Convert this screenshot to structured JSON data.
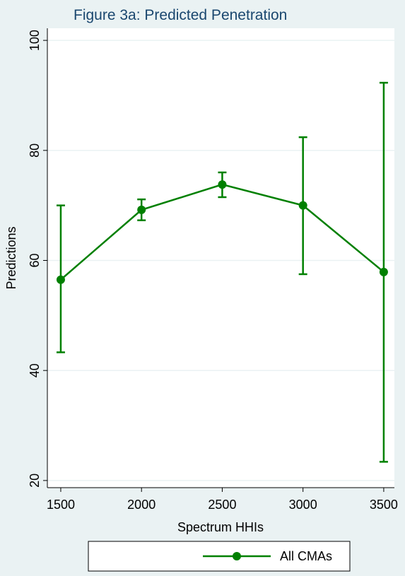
{
  "chart_data": {
    "type": "line-errorbar",
    "title": "Figure 3a: Predicted Penetration",
    "x_label": "Spectrum HHIs",
    "y_label": "Predictions",
    "x": [
      1500,
      2000,
      2500,
      3000,
      3500
    ],
    "series": [
      {
        "name": "All CMAs",
        "color": "#008000",
        "values": [
          56.5,
          69.2,
          73.8,
          70.0,
          57.9
        ],
        "lower": [
          43.3,
          67.3,
          71.5,
          57.5,
          23.4
        ],
        "upper": [
          70.0,
          71.1,
          76.0,
          82.4,
          92.3
        ]
      }
    ],
    "xlim": [
      1417,
      3566
    ],
    "xticks": [
      1500,
      2000,
      2500,
      3000,
      3500
    ],
    "ylim": [
      18.7,
      102.2
    ],
    "yticks": [
      20,
      40,
      60,
      80,
      100
    ],
    "grid": true
  }
}
